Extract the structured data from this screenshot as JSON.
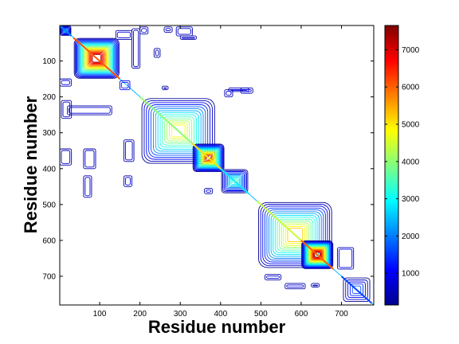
{
  "chart_data": {
    "type": "heatmap",
    "subtype": "contour",
    "title": "",
    "xlabel": "Residue number",
    "ylabel": "Residue number",
    "xlim": [
      1,
      780
    ],
    "ylim": [
      1,
      780
    ],
    "y_reversed": true,
    "x_ticks": [
      100,
      200,
      300,
      400,
      500,
      600,
      700
    ],
    "y_ticks": [
      100,
      200,
      300,
      400,
      500,
      600,
      700
    ],
    "colorbar": {
      "colormap": "jet",
      "range": [
        150,
        7650
      ],
      "ticks": [
        1000,
        2000,
        3000,
        4000,
        5000,
        6000,
        7000
      ]
    },
    "domains": [
      {
        "start": 1,
        "end": 30,
        "peak": 2500
      },
      {
        "start": 35,
        "end": 150,
        "peak": 7600
      },
      {
        "start": 200,
        "end": 390,
        "peak": 5000
      },
      {
        "start": 330,
        "end": 410,
        "peak": 6300
      },
      {
        "start": 400,
        "end": 470,
        "peak": 3500
      },
      {
        "start": 490,
        "end": 680,
        "peak": 5500
      },
      {
        "start": 600,
        "end": 680,
        "peak": 7500
      },
      {
        "start": 700,
        "end": 775,
        "peak": 2000
      }
    ],
    "off_diagonal_contacts": [
      {
        "x": [
          1,
          30
        ],
        "y": [
          150,
          170
        ],
        "level": 600
      },
      {
        "x": [
          150,
          175
        ],
        "y": [
          155,
          180
        ],
        "level": 900
      },
      {
        "x": [
          140,
          180
        ],
        "y": [
          15,
          40
        ],
        "level": 500
      },
      {
        "x": [
          200,
          220
        ],
        "y": [
          5,
          25
        ],
        "level": 450
      },
      {
        "x": [
          260,
          280
        ],
        "y": [
          5,
          20
        ],
        "level": 450
      },
      {
        "x": [
          290,
          330
        ],
        "y": [
          5,
          30
        ],
        "level": 500
      },
      {
        "x": [
          300,
          340
        ],
        "y": [
          30,
          40
        ],
        "level": 400
      },
      {
        "x": [
          235,
          250
        ],
        "y": [
          65,
          90
        ],
        "level": 400
      },
      {
        "x": [
          180,
          200
        ],
        "y": [
          10,
          120
        ],
        "level": 350
      },
      {
        "x": [
          420,
          470
        ],
        "y": [
          175,
          185
        ],
        "level": 600
      },
      {
        "x": [
          5,
          30
        ],
        "y": [
          210,
          260
        ],
        "level": 500
      },
      {
        "x": [
          20,
          130
        ],
        "y": [
          225,
          250
        ],
        "level": 450
      },
      {
        "x": [
          60,
          90
        ],
        "y": [
          345,
          400
        ],
        "level": 450
      },
      {
        "x": [
          1,
          30
        ],
        "y": [
          345,
          390
        ],
        "level": 400
      },
      {
        "x": [
          60,
          80
        ],
        "y": [
          420,
          480
        ],
        "level": 450
      },
      {
        "x": [
          160,
          185
        ],
        "y": [
          320,
          380
        ],
        "level": 400
      },
      {
        "x": [
          160,
          180
        ],
        "y": [
          420,
          450
        ],
        "level": 500
      },
      {
        "x": [
          410,
          430
        ],
        "y": [
          180,
          200
        ],
        "level": 500
      },
      {
        "x": [
          450,
          480
        ],
        "y": [
          175,
          190
        ],
        "level": 500
      },
      {
        "x": [
          690,
          730
        ],
        "y": [
          620,
          680
        ],
        "level": 600
      },
      {
        "x": [
          510,
          550
        ],
        "y": [
          695,
          710
        ],
        "level": 500
      },
      {
        "x": [
          560,
          610
        ],
        "y": [
          720,
          735
        ],
        "level": 450
      },
      {
        "x": [
          625,
          645
        ],
        "y": [
          720,
          730
        ],
        "level": 400
      },
      {
        "x": [
          360,
          380
        ],
        "y": [
          455,
          470
        ],
        "level": 500
      },
      {
        "x": [
          255,
          270
        ],
        "y": [
          170,
          180
        ],
        "level": 400
      }
    ]
  }
}
